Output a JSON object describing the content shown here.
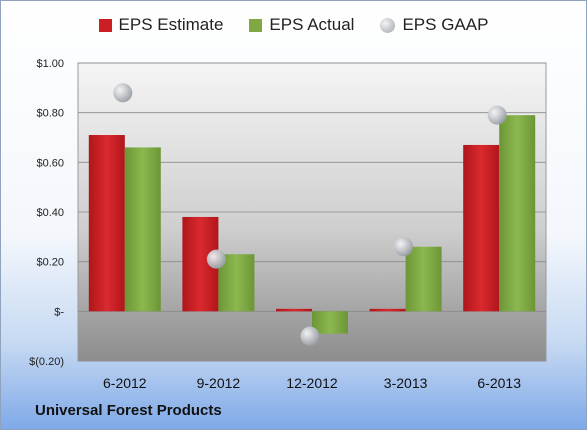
{
  "chart_data": {
    "type": "bar",
    "categories": [
      "6-2012",
      "9-2012",
      "12-2012",
      "3-2013",
      "6-2013"
    ],
    "series": [
      {
        "name": "EPS Estimate",
        "values": [
          0.71,
          0.38,
          0.01,
          0.01,
          0.67
        ],
        "color": "#cc1f24",
        "kind": "bar"
      },
      {
        "name": "EPS Actual",
        "values": [
          0.66,
          0.23,
          -0.09,
          0.26,
          0.79
        ],
        "color": "#7fa843",
        "kind": "bar"
      },
      {
        "name": "EPS GAAP",
        "values": [
          0.88,
          0.21,
          -0.1,
          0.26,
          0.79
        ],
        "color": "#a8adb3",
        "kind": "marker"
      }
    ],
    "yticks": [
      "$(0.20)",
      "$-",
      "$0.20",
      "$0.40",
      "$0.60",
      "$0.80",
      "$1.00"
    ],
    "ytick_values": [
      -0.2,
      0,
      0.2,
      0.4,
      0.6,
      0.8,
      1.0
    ],
    "ylim": [
      -0.2,
      1.0
    ],
    "grid": true,
    "legend_position": "top"
  },
  "footer": {
    "company": "Universal Forest Products"
  }
}
